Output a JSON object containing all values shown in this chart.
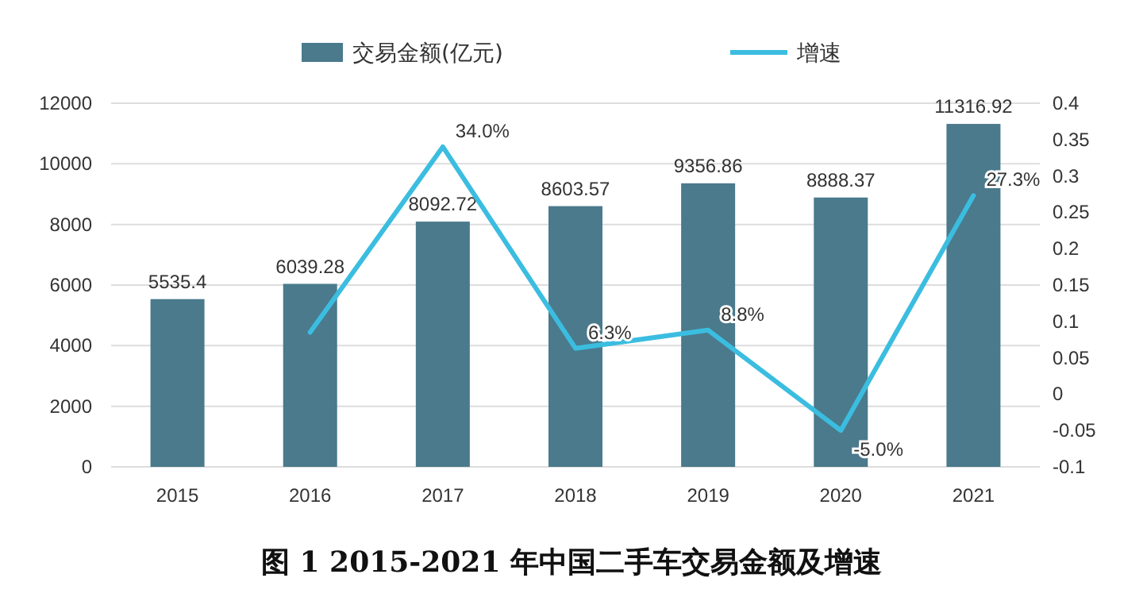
{
  "chart_data": {
    "type": "bar",
    "title": "图 1 2015-2021 年中国二手车交易金额及增速",
    "categories": [
      "2015",
      "2016",
      "2017",
      "2018",
      "2019",
      "2020",
      "2021"
    ],
    "series": [
      {
        "name": "交易金额(亿元)",
        "color": "#4a7a8c",
        "values": [
          5535.4,
          6039.28,
          8092.72,
          8603.57,
          9356.86,
          8888.37,
          11316.92
        ],
        "value_labels": [
          "5535.4",
          "6039.28",
          "8092.72",
          "8603.57",
          "9356.86",
          "8888.37",
          "11316.92"
        ]
      },
      {
        "name": "增速",
        "type": "line",
        "axis": "y2",
        "color": "#3bbde0",
        "values": [
          null,
          0.085,
          0.34,
          0.063,
          0.088,
          -0.05,
          0.273
        ],
        "value_labels": [
          null,
          null,
          "34.0%",
          "6.3%",
          "8.8%",
          "-5.0%",
          "27.3%"
        ]
      }
    ],
    "ylim": [
      0,
      12000
    ],
    "yticks": [
      0,
      2000,
      4000,
      6000,
      8000,
      10000,
      12000
    ],
    "y2lim": [
      -0.1,
      0.4
    ],
    "y2ticks": [
      -0.1,
      -0.05,
      0,
      0.05,
      0.1,
      0.15,
      0.2,
      0.25,
      0.3,
      0.35,
      0.4
    ],
    "grid": "y",
    "legend": "top"
  }
}
